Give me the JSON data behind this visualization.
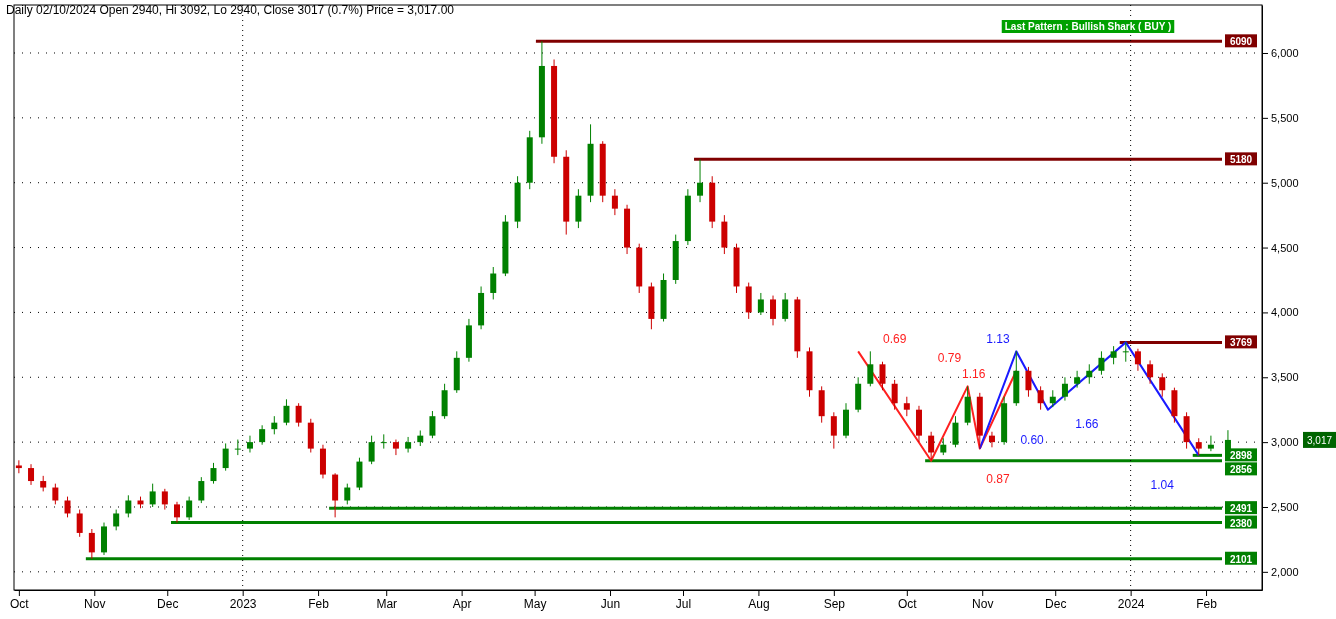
{
  "chart_data": {
    "type": "candlestick",
    "title": "Daily 02/10/2024 Open 2940, Hi 3092, Lo 2940, Close 3017 (0.7%) Price = 3,017.00",
    "x": [
      "2022-10-01",
      "2022-10-06",
      "2022-10-11",
      "2022-10-16",
      "2022-10-21",
      "2022-10-26",
      "2022-10-31",
      "2022-11-05",
      "2022-11-10",
      "2022-11-15",
      "2022-11-20",
      "2022-11-25",
      "2022-11-30",
      "2022-12-05",
      "2022-12-10",
      "2022-12-15",
      "2022-12-20",
      "2022-12-25",
      "2022-12-30",
      "2023-01-04",
      "2023-01-09",
      "2023-01-14",
      "2023-01-19",
      "2023-01-24",
      "2023-01-29",
      "2023-02-03",
      "2023-02-08",
      "2023-02-13",
      "2023-02-18",
      "2023-02-23",
      "2023-02-28",
      "2023-03-05",
      "2023-03-10",
      "2023-03-15",
      "2023-03-20",
      "2023-03-25",
      "2023-03-30",
      "2023-04-04",
      "2023-04-09",
      "2023-04-14",
      "2023-04-19",
      "2023-04-24",
      "2023-04-29",
      "2023-05-04",
      "2023-05-09",
      "2023-05-14",
      "2023-05-19",
      "2023-05-24",
      "2023-05-29",
      "2023-06-03",
      "2023-06-08",
      "2023-06-13",
      "2023-06-18",
      "2023-06-23",
      "2023-06-28",
      "2023-07-03",
      "2023-07-08",
      "2023-07-13",
      "2023-07-18",
      "2023-07-23",
      "2023-07-28",
      "2023-08-02",
      "2023-08-07",
      "2023-08-12",
      "2023-08-17",
      "2023-08-22",
      "2023-08-27",
      "2023-09-01",
      "2023-09-06",
      "2023-09-11",
      "2023-09-16",
      "2023-09-21",
      "2023-09-26",
      "2023-10-01",
      "2023-10-06",
      "2023-10-11",
      "2023-10-16",
      "2023-10-21",
      "2023-10-26",
      "2023-10-31",
      "2023-11-05",
      "2023-11-10",
      "2023-11-15",
      "2023-11-20",
      "2023-11-25",
      "2023-11-30",
      "2023-12-05",
      "2023-12-10",
      "2023-12-15",
      "2023-12-20",
      "2023-12-25",
      "2023-12-30",
      "2024-01-04",
      "2024-01-09",
      "2024-01-14",
      "2024-01-19",
      "2024-01-24",
      "2024-01-29",
      "2024-02-03",
      "2024-02-10"
    ],
    "ohlc": [
      [
        2820,
        2860,
        2760,
        2800
      ],
      [
        2800,
        2830,
        2670,
        2700
      ],
      [
        2700,
        2740,
        2620,
        2650
      ],
      [
        2650,
        2680,
        2520,
        2550
      ],
      [
        2550,
        2580,
        2420,
        2450
      ],
      [
        2450,
        2480,
        2270,
        2300
      ],
      [
        2300,
        2330,
        2101,
        2150
      ],
      [
        2150,
        2380,
        2130,
        2350
      ],
      [
        2350,
        2480,
        2320,
        2450
      ],
      [
        2450,
        2590,
        2420,
        2550
      ],
      [
        2550,
        2580,
        2490,
        2520
      ],
      [
        2520,
        2680,
        2500,
        2620
      ],
      [
        2620,
        2640,
        2480,
        2520
      ],
      [
        2520,
        2540,
        2380,
        2420
      ],
      [
        2420,
        2580,
        2400,
        2550
      ],
      [
        2550,
        2730,
        2530,
        2700
      ],
      [
        2700,
        2840,
        2680,
        2800
      ],
      [
        2800,
        2990,
        2780,
        2950
      ],
      [
        2950,
        3020,
        2900,
        2950
      ],
      [
        2950,
        3050,
        2920,
        3000
      ],
      [
        3000,
        3130,
        2980,
        3100
      ],
      [
        3100,
        3200,
        3060,
        3150
      ],
      [
        3150,
        3330,
        3130,
        3280
      ],
      [
        3280,
        3300,
        3120,
        3150
      ],
      [
        3150,
        3180,
        2920,
        2950
      ],
      [
        2950,
        2980,
        2720,
        2750
      ],
      [
        2750,
        2760,
        2420,
        2550
      ],
      [
        2550,
        2680,
        2520,
        2650
      ],
      [
        2650,
        2880,
        2630,
        2850
      ],
      [
        2850,
        3050,
        2830,
        3000
      ],
      [
        3000,
        3060,
        2950,
        3000
      ],
      [
        3000,
        3020,
        2900,
        2950
      ],
      [
        2950,
        3040,
        2920,
        3000
      ],
      [
        3000,
        3090,
        2970,
        3050
      ],
      [
        3050,
        3240,
        3030,
        3200
      ],
      [
        3200,
        3450,
        3180,
        3400
      ],
      [
        3400,
        3700,
        3380,
        3650
      ],
      [
        3650,
        3950,
        3620,
        3900
      ],
      [
        3900,
        4200,
        3870,
        4150
      ],
      [
        4150,
        4350,
        4100,
        4300
      ],
      [
        4300,
        4750,
        4280,
        4700
      ],
      [
        4700,
        5050,
        4650,
        5000
      ],
      [
        5000,
        5400,
        4950,
        5350
      ],
      [
        5350,
        6090,
        5300,
        5900
      ],
      [
        5900,
        5950,
        5150,
        5200
      ],
      [
        5200,
        5250,
        4600,
        4700
      ],
      [
        4700,
        4950,
        4650,
        4900
      ],
      [
        4900,
        5450,
        4850,
        5300
      ],
      [
        5300,
        5320,
        4850,
        4900
      ],
      [
        4900,
        4950,
        4750,
        4800
      ],
      [
        4800,
        4830,
        4450,
        4500
      ],
      [
        4500,
        4530,
        4150,
        4200
      ],
      [
        4200,
        4230,
        3870,
        3950
      ],
      [
        3950,
        4300,
        3930,
        4250
      ],
      [
        4250,
        4600,
        4220,
        4550
      ],
      [
        4550,
        4950,
        4520,
        4900
      ],
      [
        4900,
        5180,
        4850,
        5000
      ],
      [
        5000,
        5050,
        4650,
        4700
      ],
      [
        4700,
        4750,
        4450,
        4500
      ],
      [
        4500,
        4530,
        4150,
        4200
      ],
      [
        4200,
        4230,
        3950,
        4000
      ],
      [
        4000,
        4150,
        3980,
        4100
      ],
      [
        4100,
        4130,
        3900,
        3950
      ],
      [
        3950,
        4150,
        3930,
        4100
      ],
      [
        4100,
        4120,
        3650,
        3700
      ],
      [
        3700,
        3730,
        3350,
        3400
      ],
      [
        3400,
        3430,
        3150,
        3200
      ],
      [
        3200,
        3230,
        2950,
        3050
      ],
      [
        3050,
        3300,
        3030,
        3250
      ],
      [
        3250,
        3500,
        3230,
        3450
      ],
      [
        3450,
        3700,
        3430,
        3600
      ],
      [
        3600,
        3620,
        3400,
        3450
      ],
      [
        3450,
        3480,
        3250,
        3300
      ],
      [
        3300,
        3350,
        3200,
        3250
      ],
      [
        3250,
        3280,
        3000,
        3050
      ],
      [
        3050,
        3080,
        2856,
        2920
      ],
      [
        2920,
        3030,
        2900,
        2980
      ],
      [
        2980,
        3200,
        2960,
        3150
      ],
      [
        3150,
        3430,
        3130,
        3350
      ],
      [
        3350,
        3380,
        2950,
        3050
      ],
      [
        3050,
        3080,
        2960,
        3000
      ],
      [
        3000,
        3350,
        2980,
        3300
      ],
      [
        3300,
        3700,
        3280,
        3550
      ],
      [
        3550,
        3580,
        3350,
        3400
      ],
      [
        3400,
        3430,
        3250,
        3300
      ],
      [
        3300,
        3400,
        3270,
        3350
      ],
      [
        3350,
        3500,
        3320,
        3450
      ],
      [
        3450,
        3550,
        3420,
        3500
      ],
      [
        3500,
        3600,
        3450,
        3550
      ],
      [
        3550,
        3700,
        3520,
        3650
      ],
      [
        3650,
        3740,
        3600,
        3700
      ],
      [
        3700,
        3769,
        3620,
        3700
      ],
      [
        3700,
        3720,
        3550,
        3600
      ],
      [
        3600,
        3630,
        3450,
        3500
      ],
      [
        3500,
        3530,
        3350,
        3400
      ],
      [
        3400,
        3420,
        3150,
        3200
      ],
      [
        3200,
        3230,
        2950,
        3000
      ],
      [
        3000,
        3030,
        2898,
        2950
      ],
      [
        2950,
        3050,
        2930,
        2980
      ],
      [
        2940,
        3092,
        2940,
        3017
      ]
    ],
    "series": [
      {
        "type": "line",
        "color": "#ff2020",
        "x": [
          "2023-09-11",
          "2023-10-11",
          "2023-10-26",
          "2023-10-31",
          "2023-11-15"
        ],
        "values": [
          3700,
          2856,
          3430,
          2950,
          3550
        ]
      },
      {
        "type": "line",
        "color": "#1a1aff",
        "x": [
          "2023-10-31",
          "2023-11-15",
          "2023-11-28",
          "2023-12-30",
          "2024-01-29"
        ],
        "values": [
          2950,
          3700,
          3250,
          3769,
          2898
        ]
      }
    ],
    "xlim": [
      "2022-09-29",
      "2024-02-24"
    ],
    "xticks": [
      {
        "value": "2022-10-01",
        "label": "Oct"
      },
      {
        "value": "2022-11-01",
        "label": "Nov"
      },
      {
        "value": "2022-12-01",
        "label": "Dec"
      },
      {
        "value": "2023-01-01",
        "label": "2023"
      },
      {
        "value": "2023-02-01",
        "label": "Feb"
      },
      {
        "value": "2023-03-01",
        "label": "Mar"
      },
      {
        "value": "2023-04-01",
        "label": "Apr"
      },
      {
        "value": "2023-05-01",
        "label": "May"
      },
      {
        "value": "2023-06-01",
        "label": "Jun"
      },
      {
        "value": "2023-07-01",
        "label": "Jul"
      },
      {
        "value": "2023-08-01",
        "label": "Aug"
      },
      {
        "value": "2023-09-01",
        "label": "Sep"
      },
      {
        "value": "2023-10-01",
        "label": "Oct"
      },
      {
        "value": "2023-11-01",
        "label": "Nov"
      },
      {
        "value": "2023-12-01",
        "label": "Dec"
      },
      {
        "value": "2024-01-01",
        "label": "2024"
      },
      {
        "value": "2024-02-01",
        "label": "Feb"
      }
    ],
    "ylim": [
      1860,
      6370
    ],
    "yticks": [
      {
        "value": 2000,
        "label": "2,000"
      },
      {
        "value": 2500,
        "label": "2,500"
      },
      {
        "value": 3000,
        "label": "3,000"
      },
      {
        "value": 3500,
        "label": "3,500"
      },
      {
        "value": 4000,
        "label": "4,000"
      },
      {
        "value": 4500,
        "label": "4,500"
      },
      {
        "value": 5000,
        "label": "5,000"
      },
      {
        "value": 5500,
        "label": "5,500"
      },
      {
        "value": 6000,
        "label": "6,000"
      }
    ],
    "grid": "y",
    "ref_lines": [
      {
        "axis": "y",
        "value": 6090,
        "label": "6090",
        "color": "#800000"
      },
      {
        "axis": "y",
        "value": 5180,
        "label": "5180",
        "color": "#800000"
      },
      {
        "axis": "y",
        "value": 3769,
        "label": "3769",
        "color": "#800000"
      },
      {
        "axis": "y",
        "value": 2898,
        "label": "2898",
        "color": "#008000"
      },
      {
        "axis": "y",
        "value": 2856,
        "label": "2856",
        "color": "#008000"
      },
      {
        "axis": "y",
        "value": 2491,
        "label": "2491",
        "color": "#008000"
      },
      {
        "axis": "y",
        "value": 2380,
        "label": "2380",
        "color": "#008000"
      },
      {
        "axis": "y",
        "value": 2101,
        "label": "2101",
        "color": "#008000"
      },
      {
        "axis": "x",
        "value": "2023-01-01",
        "line_style": "dotted",
        "color": "#000000"
      },
      {
        "axis": "x",
        "value": "2024-01-01",
        "line_style": "dotted",
        "color": "#000000"
      }
    ],
    "annotations": [
      "Last Pattern : Bullish Shark ( BUY )",
      "0.69",
      "0.79",
      "1.16",
      "0.87",
      "1.13",
      "0.60",
      "1.66",
      "1.04",
      "3,017"
    ]
  }
}
